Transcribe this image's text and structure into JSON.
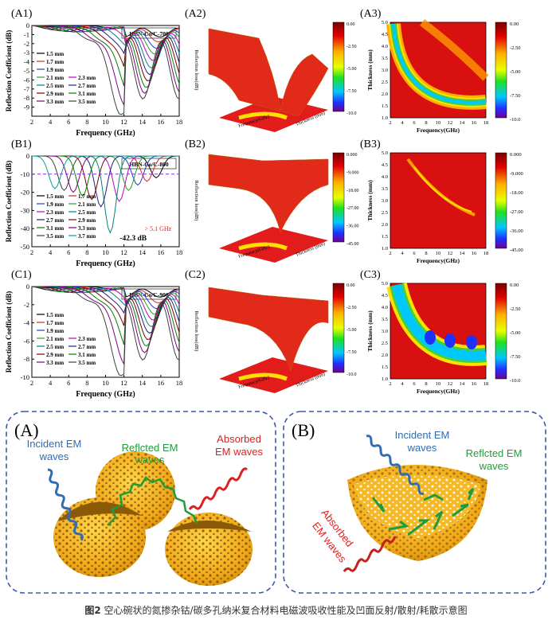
{
  "panels": {
    "A1": {
      "label": "(A1)",
      "sample": "HBN-Co/C-700",
      "ylabel": "Reflection Coefficient (dB)",
      "xlabel": "Frequency (GHz)",
      "xticks": [
        "2",
        "4",
        "6",
        "8",
        "10",
        "12",
        "14",
        "16",
        "18"
      ],
      "yticks": [
        "0",
        "-1",
        "-2",
        "-3",
        "-4",
        "-5",
        "-6",
        "-7",
        "-8",
        "-9"
      ],
      "legend": [
        "1.5 mm",
        "1.7 mm",
        "1.9 mm",
        "2.1 mm",
        "2.3 mm",
        "2.5 mm",
        "2.7 mm",
        "2.9 mm",
        "3.1 mm",
        "3.3 mm",
        "3.5 mm"
      ]
    },
    "A2": {
      "label": "(A2)",
      "zlabel": "Reflection loss(dB)",
      "xlabel": "Frequency(GHz)",
      "ylabel": "Thickness (mm)",
      "colorbar": [
        "0.00",
        "-2.50",
        "-5.00",
        "-7.50",
        "-10.0"
      ]
    },
    "A3": {
      "label": "(A3)",
      "ylabel": "Thickness (mm)",
      "xlabel": "Frequency(GHz)",
      "xticks": [
        "2",
        "4",
        "6",
        "8",
        "10",
        "12",
        "14",
        "16",
        "18"
      ],
      "yticks": [
        "5.0",
        "4.5",
        "4.0",
        "3.5",
        "3.0",
        "2.5",
        "2.0",
        "1.5",
        "1.0"
      ],
      "colorbar": [
        "0.00",
        "-2.50",
        "-5.00",
        "-7.50",
        "-10.0"
      ]
    },
    "B1": {
      "label": "(B1)",
      "sample": "HBN-Co/C-800",
      "ylabel": "Reflection Coefficient (dB)",
      "xlabel": "Frequency (GHz)",
      "xticks": [
        "2",
        "4",
        "6",
        "8",
        "10",
        "12",
        "14",
        "16",
        "18"
      ],
      "yticks": [
        "0",
        "-10",
        "-20",
        "-30",
        "-40",
        "-50"
      ],
      "legend": [
        "1.5 mm",
        "1.7 mm",
        "1.9 mm",
        "2.1 mm",
        "2.3 mm",
        "2.5 mm",
        "2.7 mm",
        "2.9 mm",
        "3.1 mm",
        "3.3 mm",
        "3.5 mm",
        "3.7 mm"
      ],
      "peak": "-42.3 dB",
      "bandwidth": "> 5.1 GHz"
    },
    "B2": {
      "label": "(B2)",
      "zlabel": "Reflection loss(dB)",
      "xlabel": "Frequency(GHz)",
      "ylabel": "Thickness (mm)",
      "colorbar": [
        "0.000",
        "-9.000",
        "-18.00",
        "-27.00",
        "-36.00",
        "-45.00"
      ]
    },
    "B3": {
      "label": "(B3)",
      "ylabel": "Thickness (mm)",
      "xlabel": "Frequency(GHz)",
      "xticks": [
        "2",
        "4",
        "6",
        "8",
        "10",
        "12",
        "14",
        "16",
        "18"
      ],
      "yticks": [
        "5.0",
        "4.5",
        "4.0",
        "3.5",
        "3.0",
        "2.5",
        "2.0",
        "1.5",
        "1.0"
      ],
      "colorbar": [
        "0.000",
        "-9.000",
        "-18.00",
        "-27.00",
        "-36.00",
        "-45.00"
      ]
    },
    "C1": {
      "label": "(C1)",
      "sample": "HBN-Co/C-900",
      "ylabel": "Reflection Coefficient (dB)",
      "xlabel": "Frequency (GHz)",
      "xticks": [
        "2",
        "4",
        "6",
        "8",
        "10",
        "12",
        "14",
        "16",
        "18"
      ],
      "yticks": [
        "0",
        "-2",
        "-4",
        "-6",
        "-8",
        "-10"
      ],
      "legend": [
        "1.5 mm",
        "1.7 mm",
        "1.9 mm",
        "2.1 mm",
        "2.3 mm",
        "2.5 mm",
        "2.7 mm",
        "2.9 mm",
        "3.1 mm",
        "3.3 mm",
        "3.5 mm"
      ]
    },
    "C2": {
      "label": "(C2)",
      "zlabel": "Reflection loss(dB)",
      "xlabel": "Frequency(GHz)",
      "ylabel": "Thickness (mm)",
      "colorbar": [
        "0.00",
        "-2.50",
        "-5.00",
        "-7.50",
        "-10.0"
      ]
    },
    "C3": {
      "label": "(C3)",
      "ylabel": "Thickness (mm)",
      "xlabel": "Frequency(GHz)",
      "xticks": [
        "2",
        "4",
        "6",
        "8",
        "10",
        "12",
        "14",
        "16",
        "18"
      ],
      "yticks": [
        "5.0",
        "4.5",
        "4.0",
        "3.5",
        "3.0",
        "2.5",
        "2.0",
        "1.5",
        "1.0"
      ],
      "colorbar": [
        "0.00",
        "-2.50",
        "-5.00",
        "-7.50",
        "-10.0"
      ]
    }
  },
  "schemes": {
    "A": {
      "label": "(A)",
      "incident": [
        "Incident EM",
        "waves"
      ],
      "reflected": [
        "Reflcted EM",
        "waves"
      ],
      "absorbed": [
        "Absorbed",
        "EM waves"
      ]
    },
    "B": {
      "label": "(B)",
      "incident": [
        "Incident EM",
        "waves"
      ],
      "reflected": [
        "Reflcted EM",
        "waves"
      ],
      "absorbed": [
        "Absorbed",
        "EM waves"
      ]
    }
  },
  "colors": {
    "incident": "#2e6db4",
    "reflected": "#1f9d3a",
    "absorbed": "#e02020",
    "shell": "#f0b21b",
    "frame": "#3a5aa8"
  },
  "caption": {
    "num": "图2",
    "text": "空心碗状的氮掺杂钴/碳多孔纳米复合材料电磁波吸收性能及凹面反射/散射/耗散示意图"
  },
  "chart_data": [
    {
      "type": "line",
      "title": "HBN-Co/C-700",
      "xlabel": "Frequency (GHz)",
      "ylabel": "Reflection Coefficient (dB)",
      "xlim": [
        2,
        18
      ],
      "ylim": [
        -10,
        0
      ],
      "series": [
        {
          "name": "1.5 mm",
          "minimum": -1.4
        },
        {
          "name": "1.7 mm",
          "minimum": -2.0
        },
        {
          "name": "1.9 mm",
          "minimum": -2.8
        },
        {
          "name": "2.1 mm",
          "minimum": -3.5
        },
        {
          "name": "2.3 mm",
          "minimum": -4.3
        },
        {
          "name": "2.5 mm",
          "minimum": -5.2
        },
        {
          "name": "2.7 mm",
          "minimum": -6.0
        },
        {
          "name": "2.9 mm",
          "minimum": -6.8
        },
        {
          "name": "3.1 mm",
          "minimum": -7.6
        },
        {
          "name": "3.3 mm",
          "minimum": -8.3
        },
        {
          "name": "3.5 mm",
          "minimum": -9.0
        }
      ]
    },
    {
      "type": "line",
      "title": "HBN-Co/C-800",
      "xlabel": "Frequency (GHz)",
      "ylabel": "Reflection Coefficient (dB)",
      "xlim": [
        2,
        18
      ],
      "ylim": [
        -50,
        0
      ],
      "series": [
        {
          "name": "1.5 mm",
          "minimum": -12
        },
        {
          "name": "1.7 mm",
          "minimum": -14
        },
        {
          "name": "1.9 mm",
          "minimum": -16
        },
        {
          "name": "2.1 mm",
          "minimum": -19
        },
        {
          "name": "2.3 mm",
          "minimum": -25
        },
        {
          "name": "2.5 mm",
          "minimum": -42.3
        },
        {
          "name": "2.7 mm",
          "minimum": -28
        },
        {
          "name": "2.9 mm",
          "minimum": -24
        },
        {
          "name": "3.1 mm",
          "minimum": -22
        },
        {
          "name": "3.3 mm",
          "minimum": -20
        },
        {
          "name": "3.5 mm",
          "minimum": -19
        },
        {
          "name": "3.7 mm",
          "minimum": -18
        }
      ]
    },
    {
      "type": "line",
      "title": "HBN-Co/C-900",
      "xlabel": "Frequency (GHz)",
      "ylabel": "Reflection Coefficient (dB)",
      "xlim": [
        2,
        18
      ],
      "ylim": [
        -10,
        0
      ],
      "series": [
        {
          "name": "1.5 mm",
          "minimum": -1.3
        },
        {
          "name": "1.7 mm",
          "minimum": -2.0
        },
        {
          "name": "1.9 mm",
          "minimum": -2.7
        },
        {
          "name": "2.1 mm",
          "minimum": -3.4
        },
        {
          "name": "2.3 mm",
          "minimum": -4.1
        },
        {
          "name": "2.5 mm",
          "minimum": -4.9
        },
        {
          "name": "2.7 mm",
          "minimum": -5.7
        },
        {
          "name": "2.9 mm",
          "minimum": -6.5
        },
        {
          "name": "3.1 mm",
          "minimum": -7.3
        },
        {
          "name": "3.3 mm",
          "minimum": -8.1
        },
        {
          "name": "3.5 mm",
          "minimum": -9.0
        }
      ]
    }
  ]
}
